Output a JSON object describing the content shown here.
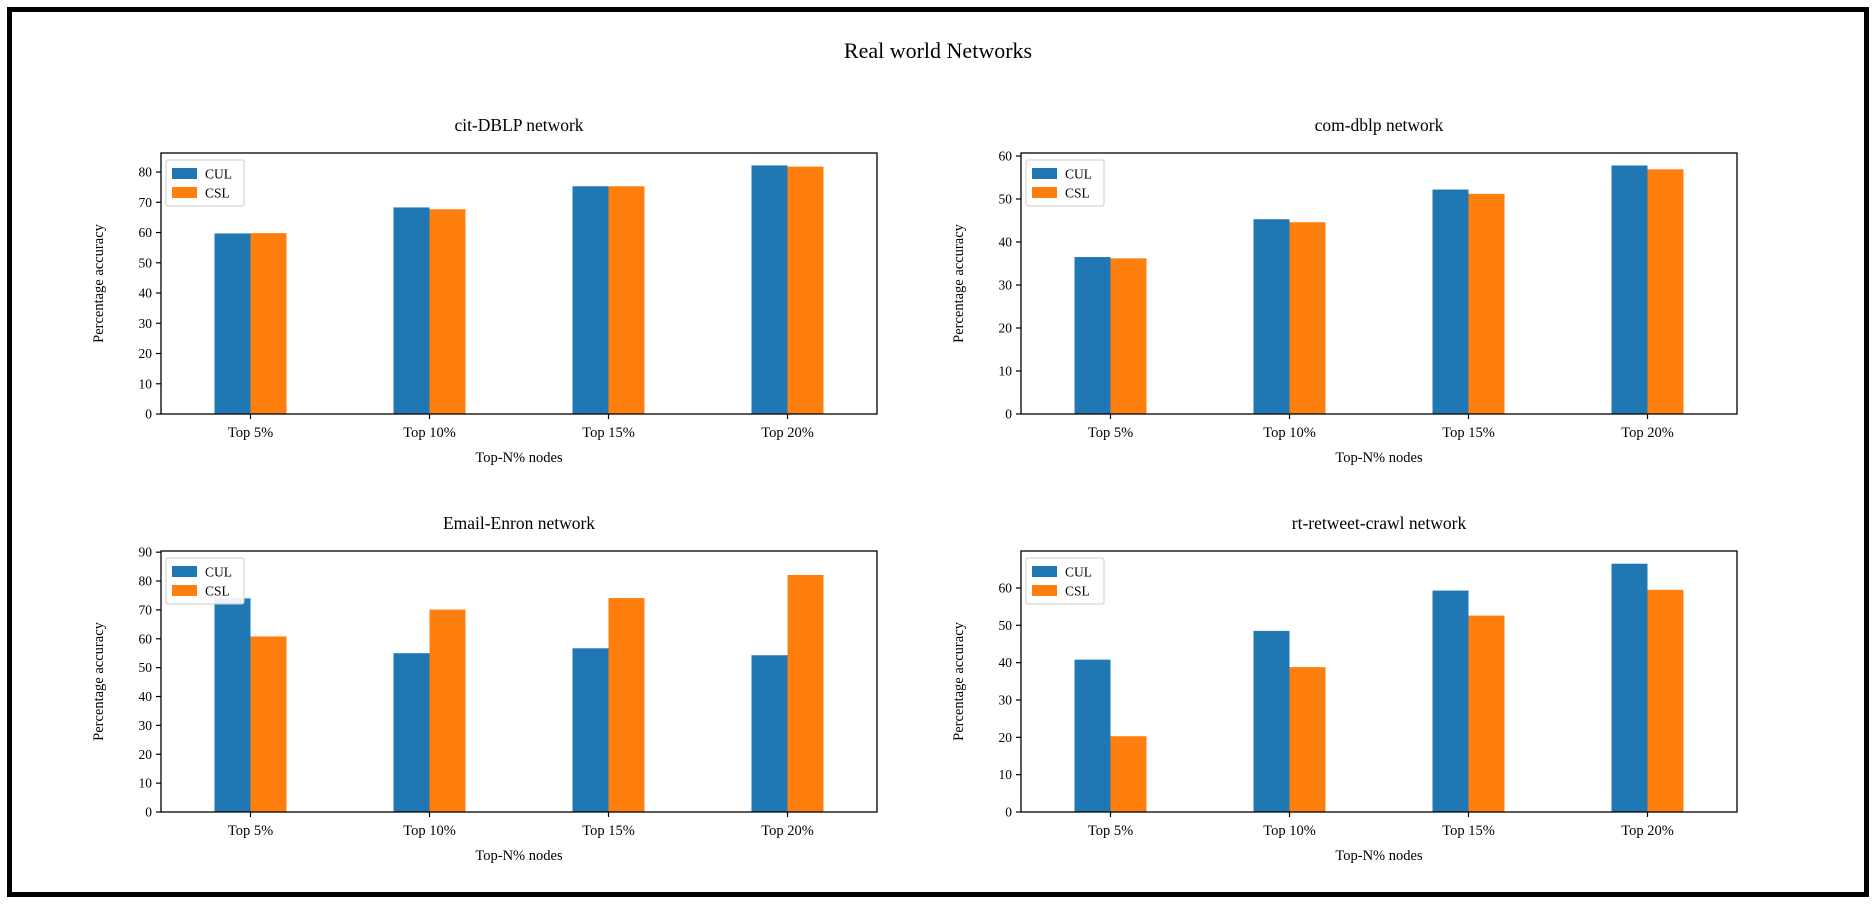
{
  "figure": {
    "suptitle": "Real world Networks",
    "background_color": "#ffffff",
    "border_color": "#000000"
  },
  "colors": {
    "cul_blue": "#1f77b4",
    "csl_orange": "#ff7f0e",
    "legend_border": "#cccccc",
    "axis": "#000000"
  },
  "chart_data": [
    {
      "type": "bar",
      "title": "cit-DBLP network",
      "categories": [
        "Top 5%",
        "Top 10%",
        "Top 15%",
        "Top 20%"
      ],
      "series": [
        {
          "name": "CUL",
          "color": "#1f77b4",
          "values": [
            59.7,
            68.3,
            75.3,
            82.2
          ]
        },
        {
          "name": "CSL",
          "color": "#ff7f0e",
          "values": [
            59.8,
            67.7,
            75.3,
            81.8
          ]
        }
      ],
      "xlabel": "Top-N% nodes",
      "ylabel": "Percentage accuracy",
      "ylim": [
        0,
        86.3
      ],
      "yticks": [
        0,
        10,
        20,
        30,
        40,
        50,
        60,
        70,
        80
      ],
      "legend_position": "upper left",
      "grid": false
    },
    {
      "type": "bar",
      "title": "com-dblp network",
      "categories": [
        "Top 5%",
        "Top 10%",
        "Top 15%",
        "Top 20%"
      ],
      "series": [
        {
          "name": "CUL",
          "color": "#1f77b4",
          "values": [
            36.5,
            45.3,
            52.2,
            57.8
          ]
        },
        {
          "name": "CSL",
          "color": "#ff7f0e",
          "values": [
            36.2,
            44.6,
            51.2,
            56.9
          ]
        }
      ],
      "xlabel": "Top-N% nodes",
      "ylabel": "Percentage accuracy",
      "ylim": [
        0,
        60.7
      ],
      "yticks": [
        0,
        10,
        20,
        30,
        40,
        50,
        60
      ],
      "legend_position": "upper left",
      "grid": false
    },
    {
      "type": "bar",
      "title": "Email-Enron network",
      "categories": [
        "Top 5%",
        "Top 10%",
        "Top 15%",
        "Top 20%"
      ],
      "series": [
        {
          "name": "CUL",
          "color": "#1f77b4",
          "values": [
            74.0,
            55.0,
            56.7,
            54.3
          ]
        },
        {
          "name": "CSL",
          "color": "#ff7f0e",
          "values": [
            60.8,
            70.1,
            74.1,
            82.1
          ]
        }
      ],
      "xlabel": "Top-N% nodes",
      "ylabel": "Percentage accuracy",
      "ylim": [
        0,
        90.4
      ],
      "yticks": [
        0,
        10,
        20,
        30,
        40,
        50,
        60,
        70,
        80,
        90
      ],
      "legend_position": "upper left",
      "grid": false
    },
    {
      "type": "bar",
      "title": "rt-retweet-crawl network",
      "categories": [
        "Top 5%",
        "Top 10%",
        "Top 15%",
        "Top 20%"
      ],
      "series": [
        {
          "name": "CUL",
          "color": "#1f77b4",
          "values": [
            40.8,
            48.5,
            59.3,
            66.5
          ]
        },
        {
          "name": "CSL",
          "color": "#ff7f0e",
          "values": [
            20.3,
            38.8,
            52.6,
            59.5
          ]
        }
      ],
      "xlabel": "Top-N% nodes",
      "ylabel": "Percentage accuracy",
      "ylim": [
        0,
        69.9
      ],
      "yticks": [
        0,
        10,
        20,
        30,
        40,
        50,
        60
      ],
      "legend_position": "upper left",
      "grid": false
    }
  ]
}
